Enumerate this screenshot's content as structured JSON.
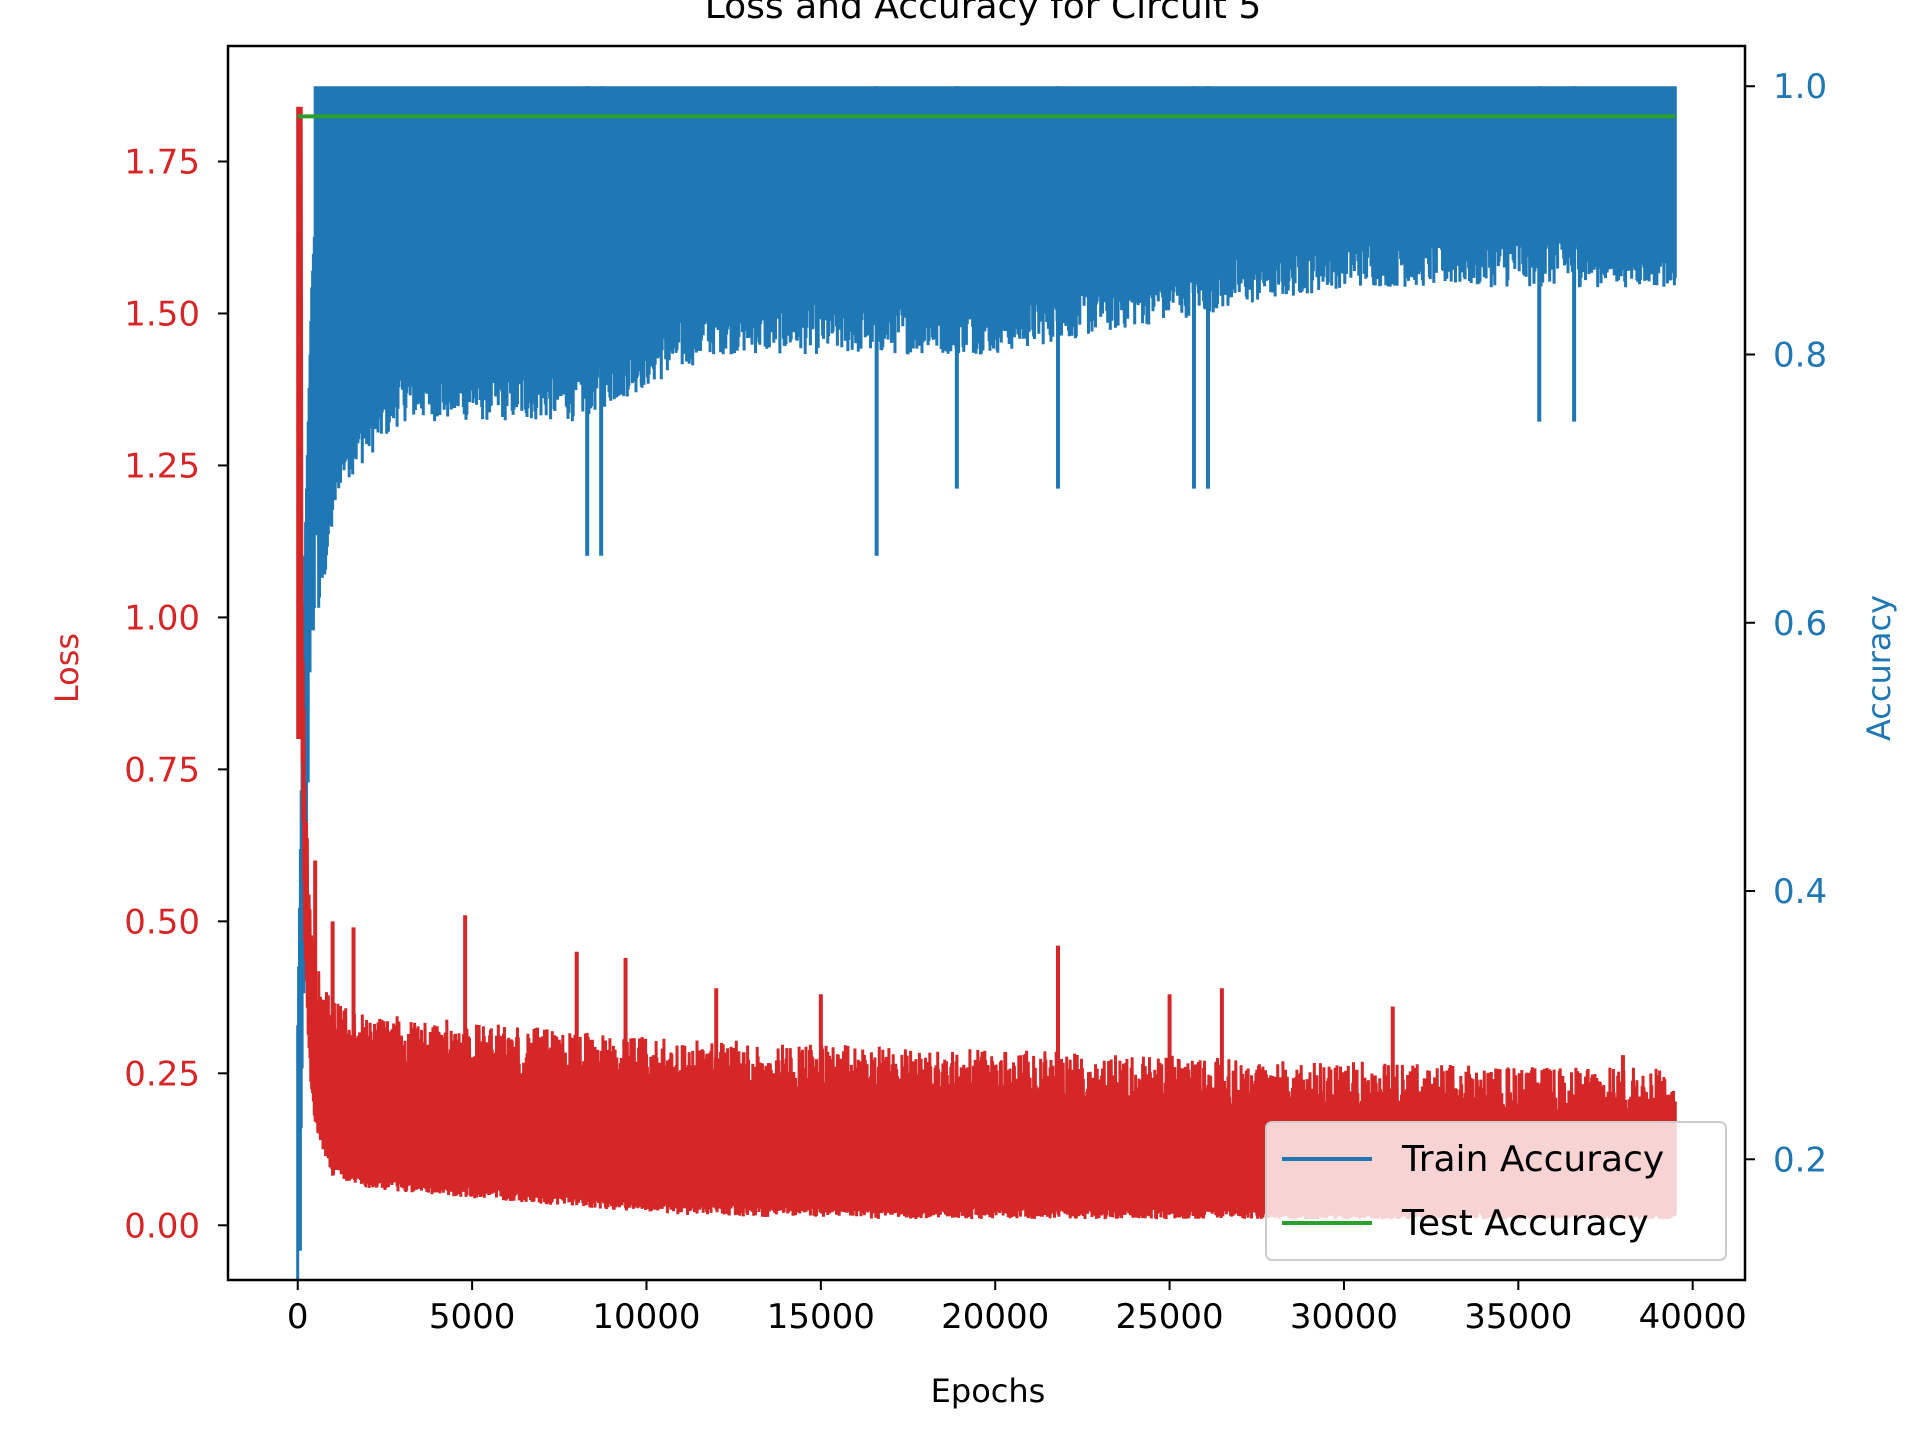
{
  "chart_data": {
    "type": "line",
    "title": "Loss and Accuracy for Circuit 5",
    "xlabel": "Epochs",
    "ylabel_left": "Loss",
    "ylabel_right": "Accuracy",
    "xlim": [
      -2000,
      41500
    ],
    "ylim_left": [
      -0.09,
      1.94
    ],
    "ylim_right": [
      0.11,
      1.03
    ],
    "x_ticks": [
      0,
      5000,
      10000,
      15000,
      20000,
      25000,
      30000,
      35000,
      40000
    ],
    "y_left_ticks": [
      "0.00",
      "0.25",
      "0.50",
      "0.75",
      "1.00",
      "1.25",
      "1.50",
      "1.75"
    ],
    "y_right_ticks": [
      "0.2",
      "0.4",
      "0.6",
      "0.8",
      "1.0"
    ],
    "grid": false,
    "legend_position": "lower-right",
    "colors": {
      "loss": "#d62728",
      "train_accuracy": "#1f77b4",
      "test_accuracy": "#2ca02c",
      "left_axis": "#d62728",
      "right_axis": "#1f77b4"
    },
    "series": [
      {
        "name": "Loss",
        "axis": "left",
        "color": "#d62728",
        "x": [
          0,
          100,
          200,
          300,
          400,
          500,
          1000,
          2000,
          4000,
          6000,
          8000,
          10000,
          12000,
          15000,
          18000,
          20000,
          22000,
          25000,
          28000,
          30000,
          33000,
          36000,
          39500
        ],
        "y": [
          1.84,
          1.0,
          0.6,
          0.45,
          0.35,
          0.3,
          0.22,
          0.2,
          0.19,
          0.18,
          0.17,
          0.16,
          0.155,
          0.15,
          0.14,
          0.14,
          0.135,
          0.13,
          0.12,
          0.12,
          0.115,
          0.11,
          0.11
        ],
        "band_min": 0.01,
        "spikes": [
          [
            500,
            0.6
          ],
          [
            1000,
            0.5
          ],
          [
            1600,
            0.49
          ],
          [
            4800,
            0.51
          ],
          [
            8000,
            0.45
          ],
          [
            9400,
            0.44
          ],
          [
            12000,
            0.39
          ],
          [
            15000,
            0.38
          ],
          [
            21800,
            0.46
          ],
          [
            25000,
            0.38
          ],
          [
            26500,
            0.39
          ],
          [
            31400,
            0.36
          ],
          [
            38000,
            0.28
          ]
        ]
      },
      {
        "name": "Train Accuracy",
        "axis": "right",
        "color": "#1f77b4",
        "x": [
          0,
          200,
          400,
          600,
          1000,
          2000,
          5000,
          10000,
          15000,
          20000,
          25000,
          30000,
          35000,
          39500
        ],
        "y": [
          0.15,
          0.5,
          0.7,
          0.8,
          0.85,
          0.88,
          0.9,
          0.92,
          0.93,
          0.94,
          0.94,
          0.95,
          0.96,
          0.96
        ],
        "band_max": 1.0,
        "band_floor": [
          [
            0,
            0.15
          ],
          [
            300,
            0.45
          ],
          [
            600,
            0.6
          ],
          [
            1200,
            0.7
          ],
          [
            3000,
            0.75
          ],
          [
            8000,
            0.75
          ],
          [
            12000,
            0.8
          ],
          [
            20000,
            0.8
          ],
          [
            30000,
            0.85
          ],
          [
            39500,
            0.85
          ]
        ],
        "dips": [
          [
            8300,
            0.65
          ],
          [
            8700,
            0.65
          ],
          [
            16600,
            0.65
          ],
          [
            18900,
            0.7
          ],
          [
            21800,
            0.7
          ],
          [
            25700,
            0.7
          ],
          [
            26100,
            0.7
          ],
          [
            35600,
            0.75
          ],
          [
            36600,
            0.75
          ]
        ]
      },
      {
        "name": "Test Accuracy",
        "axis": "right",
        "color": "#2ca02c",
        "x": [
          0,
          39500
        ],
        "y": [
          0.9775,
          0.9775
        ]
      }
    ]
  }
}
